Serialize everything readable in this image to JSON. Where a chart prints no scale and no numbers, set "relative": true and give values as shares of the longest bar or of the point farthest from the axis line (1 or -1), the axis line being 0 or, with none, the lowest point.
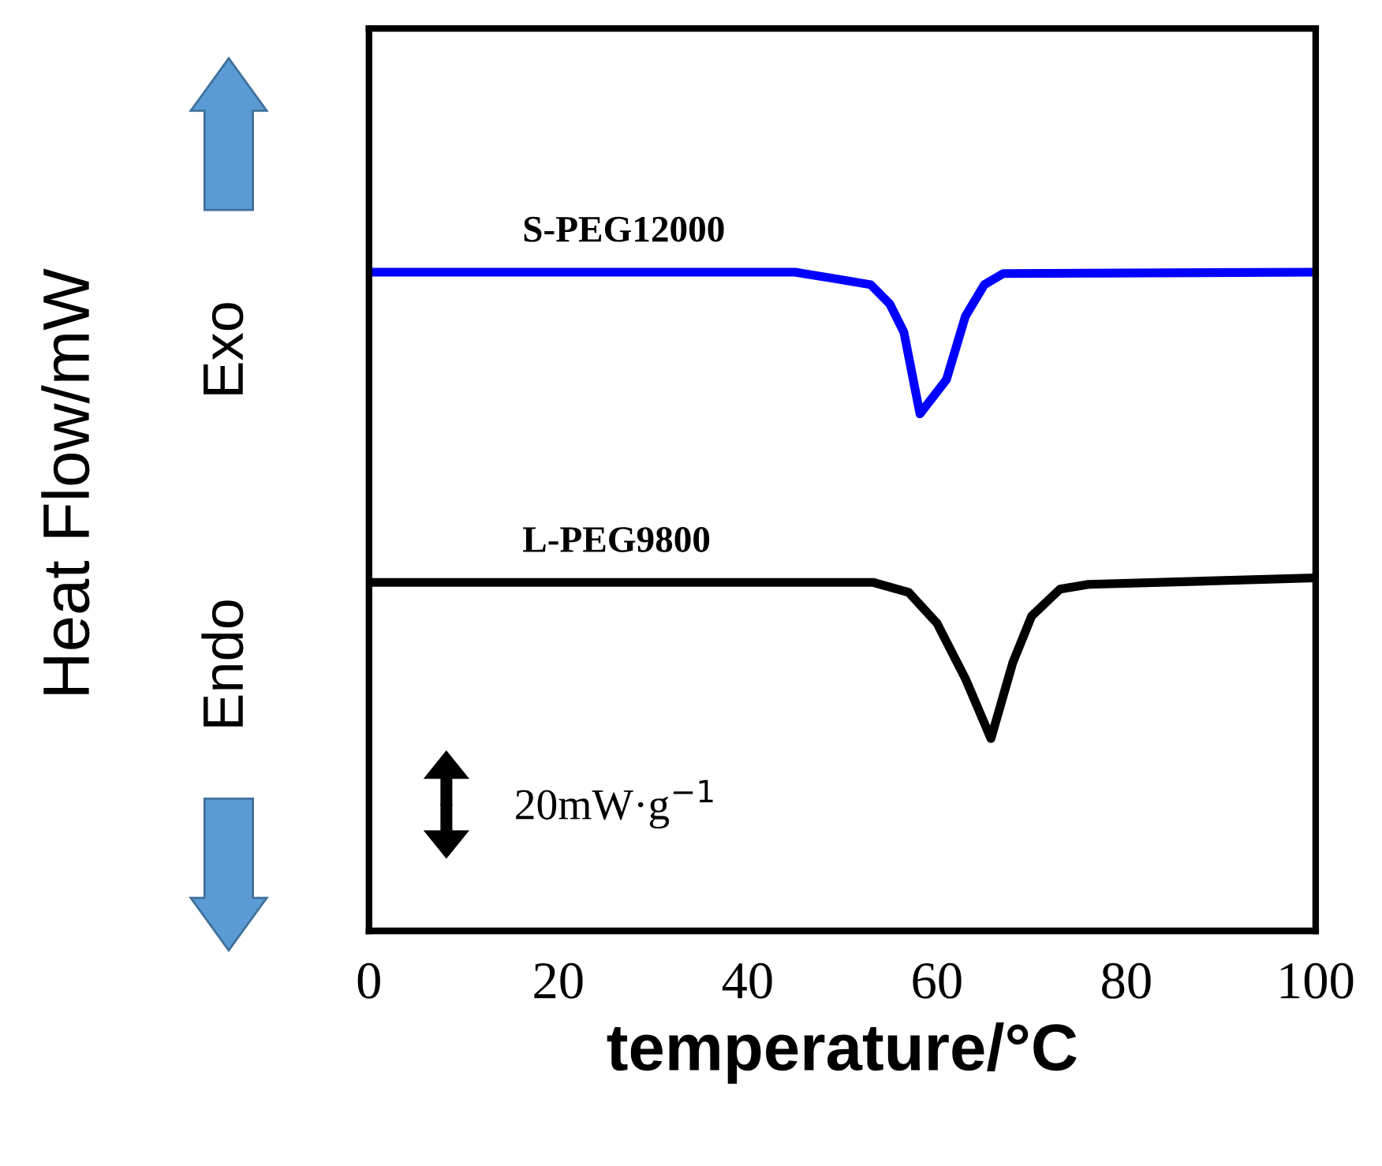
{
  "chart_data": {
    "type": "line",
    "relative": true,
    "xlabel": "temperature/°C",
    "ylabel": "Heat Flow/mW",
    "xlim": [
      0,
      100
    ],
    "xticks": [
      0,
      20,
      40,
      60,
      80,
      100
    ],
    "tick_labels": "x",
    "grid": false,
    "annotations": [
      "Exo",
      "Endo",
      "20mW·g$^{−1}$"
    ],
    "series": [
      {
        "name": "S-PEG12000",
        "color": "#0000ff",
        "x": [
          0,
          45,
          49.3,
          53,
          55,
          56.5,
          58.2,
          61,
          63,
          65,
          67,
          100
        ],
        "values": [
          1.0,
          1.0,
          0.99,
          0.981,
          0.952,
          0.909,
          0.785,
          0.837,
          0.933,
          0.981,
          0.998,
          1.0
        ]
      },
      {
        "name": "L-PEG9800",
        "color": "#000000",
        "x": [
          0,
          53.3,
          57,
          60,
          63,
          65.7,
          68,
          70,
          73,
          76,
          100
        ],
        "values": [
          0.529,
          0.529,
          0.514,
          0.467,
          0.383,
          0.292,
          0.407,
          0.478,
          0.519,
          0.526,
          0.536
        ]
      }
    ]
  }
}
